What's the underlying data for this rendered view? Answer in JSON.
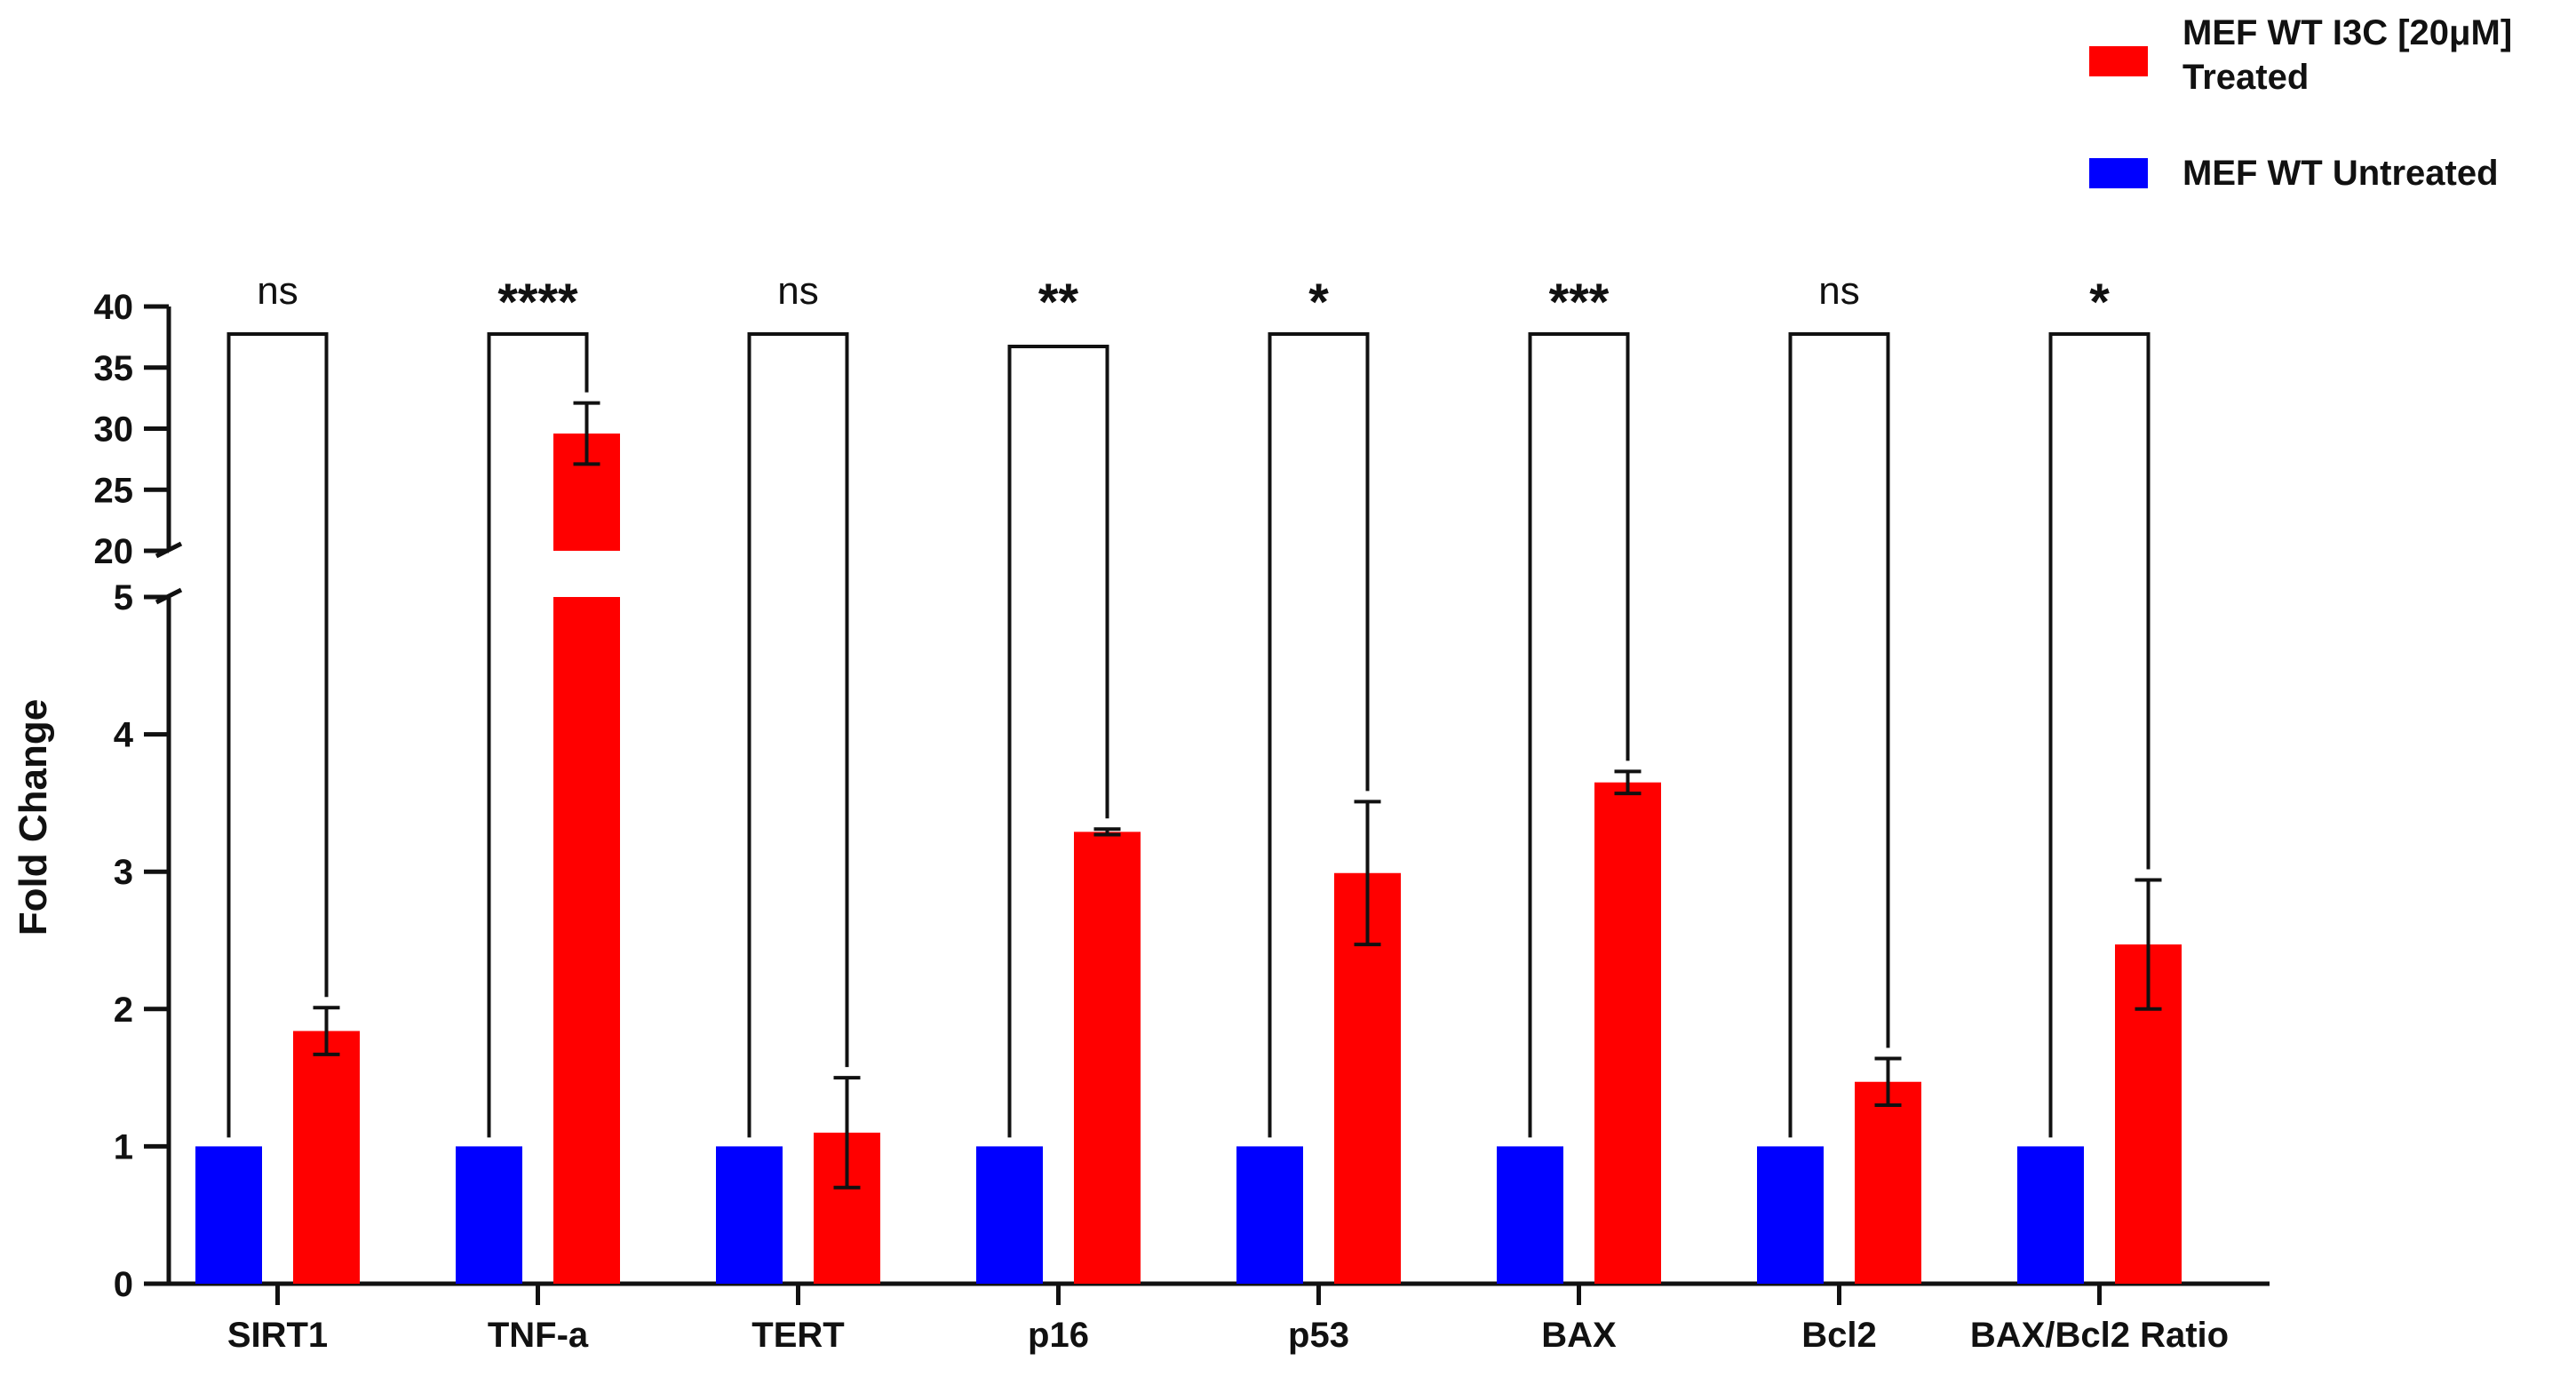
{
  "chart_data": {
    "type": "bar",
    "ylabel": "Fold Change",
    "categories": [
      "SIRT1",
      "TNF-a",
      "TERT",
      "p16",
      "p53",
      "BAX",
      "Bcl2",
      "BAX/Bcl2 Ratio"
    ],
    "y_axis": {
      "broken": true,
      "lower_segment": {
        "range": [
          0,
          5
        ],
        "ticks": [
          0,
          1,
          2,
          3,
          4,
          5
        ]
      },
      "upper_segment": {
        "range": [
          20,
          40
        ],
        "ticks": [
          20,
          25,
          30,
          35,
          40
        ]
      }
    },
    "series": [
      {
        "name": "MEF WT Untreated",
        "color": "#0000ff",
        "values": [
          1,
          1,
          1,
          1,
          1,
          1,
          1,
          1
        ],
        "errors": [
          0,
          0,
          0,
          0,
          0,
          0,
          0,
          0
        ]
      },
      {
        "name": "MEF WT I3C [20μM] Treated",
        "color": "#ff0000",
        "values": [
          1.84,
          29.6,
          1.1,
          3.29,
          2.99,
          3.65,
          1.47,
          2.47
        ],
        "errors": [
          0.17,
          2.5,
          0.4,
          0.02,
          0.52,
          0.08,
          0.17,
          0.47
        ]
      }
    ],
    "significance": [
      "ns",
      "****",
      "ns",
      "**",
      "*",
      "***",
      "ns",
      "*"
    ],
    "legend": {
      "position": "top-right",
      "items": [
        {
          "lines": [
            "MEF WT I3C [20μM]",
            "Treated"
          ],
          "color": "#ff0000"
        },
        {
          "lines": [
            "MEF WT Untreated"
          ],
          "color": "#0000ff"
        }
      ]
    },
    "grid": false
  }
}
